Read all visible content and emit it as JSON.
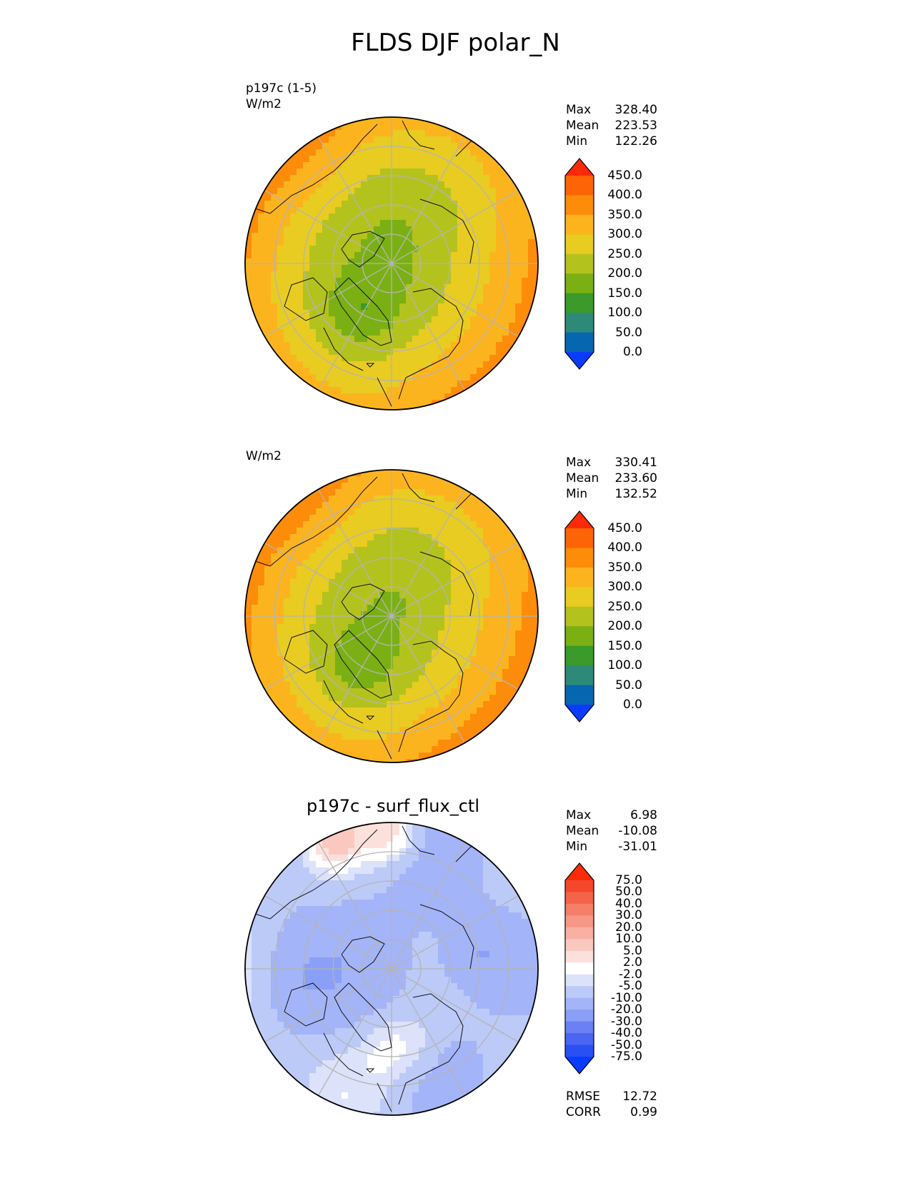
{
  "figure": {
    "title": "FLDS DJF polar_N"
  },
  "chart_data": [
    {
      "type": "heatmap",
      "projection": "north-polar-stereographic",
      "title": "",
      "left_labels": [
        "p197c (1-5)",
        "W/m2"
      ],
      "stats": {
        "max": "328.40",
        "mean": "223.53",
        "min": "122.26"
      },
      "stat_labels": {
        "max": "Max",
        "mean": "Mean",
        "min": "Min"
      },
      "colorbar": {
        "levels": [
          "0.0",
          "50.0",
          "100.0",
          "150.0",
          "200.0",
          "250.0",
          "300.0",
          "350.0",
          "400.0",
          "450.0"
        ],
        "colors": [
          "#0a3cff",
          "#0666b0",
          "#2e8a78",
          "#3a9a2a",
          "#7ab014",
          "#b4c21e",
          "#e8cc22",
          "#fcb41e",
          "#fc8c0a",
          "#fc6406",
          "#fc2a06"
        ],
        "extend": "both"
      }
    },
    {
      "type": "heatmap",
      "projection": "north-polar-stereographic",
      "title": "",
      "left_labels": [
        "W/m2"
      ],
      "stats": {
        "max": "330.41",
        "mean": "233.60",
        "min": "132.52"
      },
      "stat_labels": {
        "max": "Max",
        "mean": "Mean",
        "min": "Min"
      },
      "colorbar": {
        "levels": [
          "0.0",
          "50.0",
          "100.0",
          "150.0",
          "200.0",
          "250.0",
          "300.0",
          "350.0",
          "400.0",
          "450.0"
        ],
        "colors": [
          "#0a3cff",
          "#0666b0",
          "#2e8a78",
          "#3a9a2a",
          "#7ab014",
          "#b4c21e",
          "#e8cc22",
          "#fcb41e",
          "#fc8c0a",
          "#fc6406",
          "#fc2a06"
        ],
        "extend": "both"
      }
    },
    {
      "type": "heatmap",
      "projection": "north-polar-stereographic",
      "title": "p197c - surf_flux_ctl",
      "left_labels": [],
      "stats": {
        "max": "6.98",
        "mean": "-10.08",
        "min": "-31.01"
      },
      "stat_labels": {
        "max": "Max",
        "mean": "Mean",
        "min": "Min"
      },
      "metrics": {
        "rmse_label": "RMSE",
        "rmse": "12.72",
        "corr_label": "CORR",
        "corr": "0.99"
      },
      "colorbar": {
        "levels": [
          "-75.0",
          "-50.0",
          "-40.0",
          "-30.0",
          "-20.0",
          "-10.0",
          "-5.0",
          "-2.0",
          "2.0",
          "5.0",
          "10.0",
          "20.0",
          "30.0",
          "40.0",
          "50.0",
          "75.0"
        ],
        "colors": [
          "#0a3cff",
          "#2a50f4",
          "#4a66f2",
          "#6a80f4",
          "#8aa0f6",
          "#a4b4f8",
          "#bccaf8",
          "#dce2fa",
          "#ffffff",
          "#fbe0dc",
          "#fbc8c0",
          "#f9b0a4",
          "#f79886",
          "#f5806a",
          "#f3644a",
          "#f3482c",
          "#fc2a06"
        ],
        "extend": "both"
      }
    }
  ]
}
